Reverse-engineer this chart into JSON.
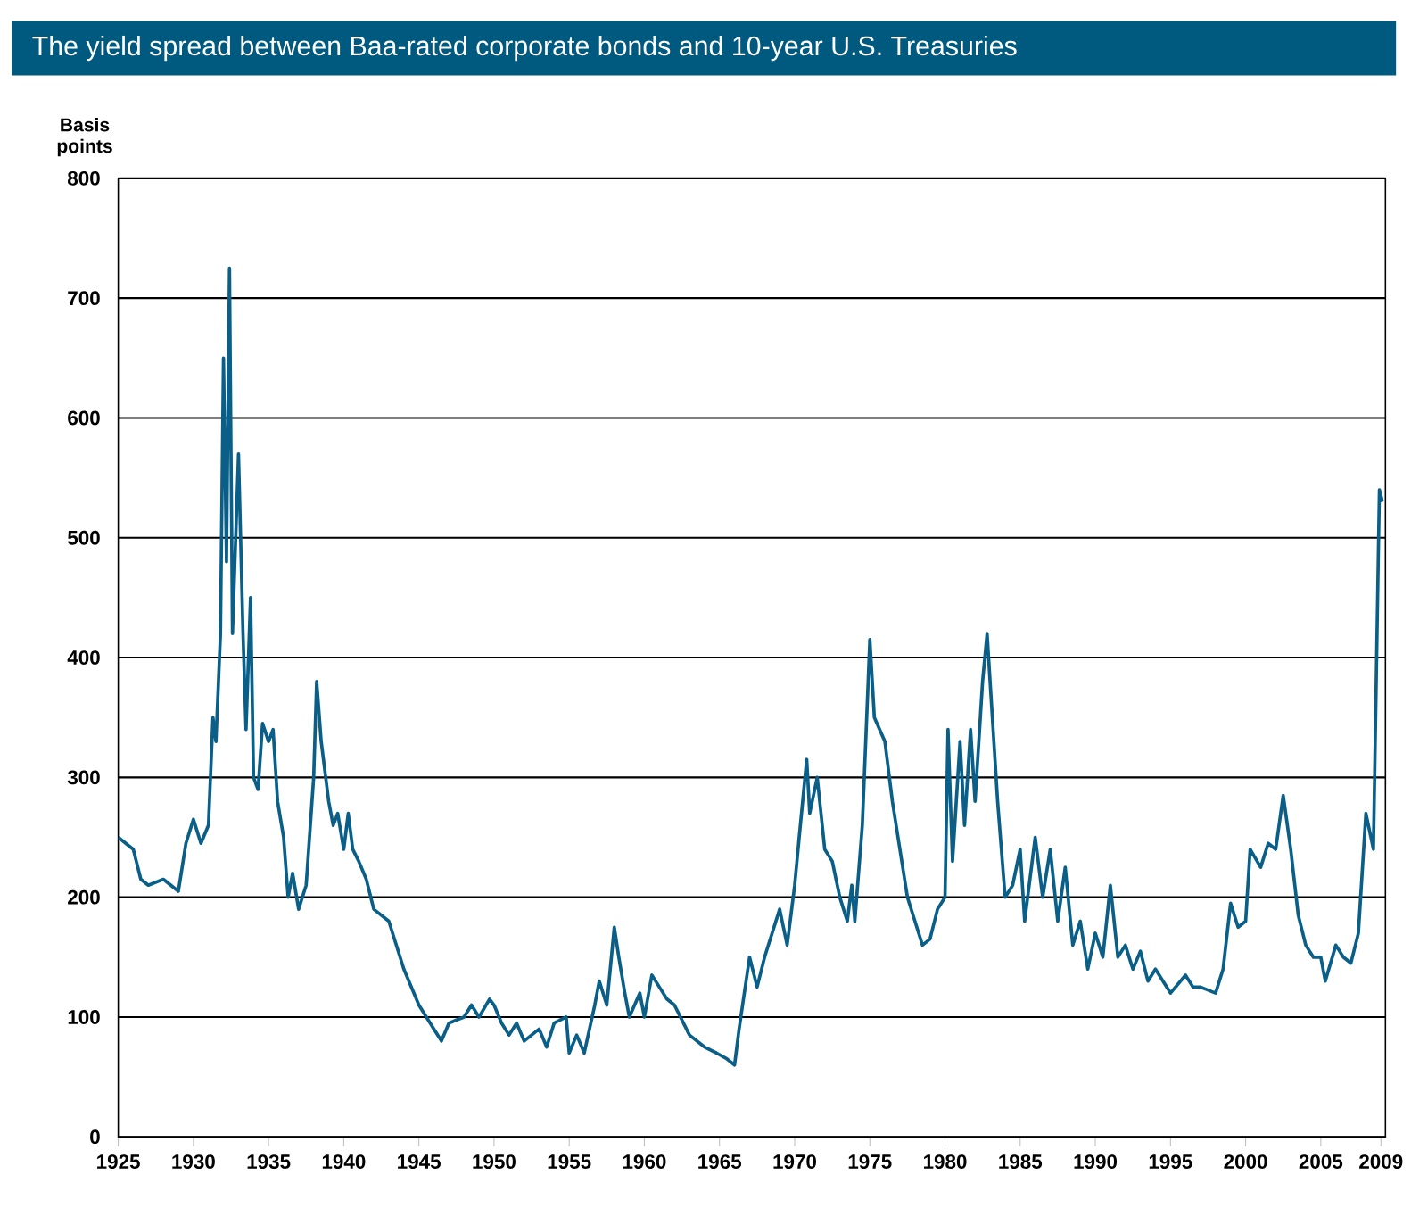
{
  "chart_data": {
    "type": "line",
    "title": "The yield spread between Baa-rated corporate bonds and 10-year U.S. Treasuries",
    "ylabel": "Basis points",
    "x": [
      1925,
      1926,
      1926.5,
      1927,
      1928,
      1929,
      1929.5,
      1930,
      1930.5,
      1931,
      1931.3,
      1931.5,
      1931.8,
      1932,
      1932.2,
      1932.4,
      1932.6,
      1933,
      1933.3,
      1933.5,
      1933.8,
      1934,
      1934.3,
      1934.6,
      1935,
      1935.3,
      1935.6,
      1936,
      1936.3,
      1936.6,
      1937,
      1937.5,
      1938,
      1938.2,
      1938.5,
      1939,
      1939.3,
      1939.6,
      1940,
      1940.3,
      1940.6,
      1941,
      1941.5,
      1942,
      1943,
      1944,
      1945,
      1946,
      1946.5,
      1947,
      1948,
      1948.5,
      1949,
      1949.7,
      1950,
      1950.5,
      1951,
      1951.5,
      1952,
      1953,
      1953.5,
      1954,
      1954.8,
      1955,
      1955.5,
      1956,
      1956.7,
      1957,
      1957.5,
      1958,
      1958.3,
      1958.7,
      1959,
      1959.7,
      1960,
      1960.5,
      1961,
      1961.5,
      1962,
      1963,
      1964,
      1964.8,
      1965.5,
      1966,
      1966.3,
      1967,
      1967.5,
      1968,
      1969,
      1969.5,
      1970,
      1970.3,
      1970.8,
      1971,
      1971.5,
      1972,
      1972.5,
      1973,
      1973.5,
      1973.8,
      1974,
      1974.5,
      1975,
      1975.3,
      1976,
      1976.5,
      1977,
      1977.5,
      1978,
      1978.5,
      1979,
      1979.5,
      1980,
      1980.2,
      1980.5,
      1981,
      1981.3,
      1981.7,
      1982,
      1982.5,
      1982.8,
      1983,
      1983.5,
      1984,
      1984.5,
      1985,
      1985.3,
      1986,
      1986.5,
      1987,
      1987.5,
      1988,
      1988.5,
      1989,
      1989.5,
      1990,
      1990.5,
      1991,
      1991.5,
      1992,
      1992.5,
      1993,
      1993.5,
      1994,
      1995,
      1996,
      1996.5,
      1997,
      1998,
      1998.5,
      1999,
      1999.5,
      2000,
      2000.3,
      2001,
      2001.5,
      2002,
      2002.5,
      2003,
      2003.5,
      2004,
      2004.5,
      2005,
      2005.3,
      2006,
      2006.5,
      2007,
      2007.5,
      2008,
      2008.5,
      2008.9,
      2009.1
    ],
    "series": [
      {
        "color": "#0a5f88",
        "values": [
          250,
          240,
          215,
          210,
          215,
          205,
          245,
          265,
          245,
          260,
          350,
          330,
          420,
          650,
          480,
          725,
          420,
          570,
          420,
          340,
          450,
          300,
          290,
          345,
          330,
          340,
          280,
          250,
          200,
          220,
          190,
          210,
          300,
          380,
          330,
          280,
          260,
          270,
          240,
          270,
          240,
          230,
          215,
          190,
          180,
          140,
          110,
          90,
          80,
          95,
          100,
          110,
          100,
          115,
          110,
          95,
          85,
          95,
          80,
          90,
          75,
          95,
          100,
          70,
          85,
          70,
          110,
          130,
          110,
          175,
          150,
          120,
          100,
          120,
          100,
          135,
          125,
          115,
          110,
          85,
          75,
          70,
          65,
          60,
          90,
          150,
          125,
          150,
          190,
          160,
          210,
          250,
          315,
          270,
          300,
          240,
          230,
          200,
          180,
          210,
          180,
          260,
          415,
          350,
          330,
          280,
          240,
          200,
          180,
          160,
          165,
          190,
          200,
          340,
          230,
          330,
          260,
          340,
          280,
          380,
          420,
          380,
          280,
          200,
          210,
          240,
          180,
          250,
          200,
          240,
          180,
          225,
          160,
          180,
          140,
          170,
          150,
          210,
          150,
          160,
          140,
          155,
          130,
          140,
          120,
          135,
          125,
          125,
          120,
          140,
          195,
          175,
          180,
          240,
          225,
          245,
          240,
          285,
          240,
          185,
          160,
          150,
          150,
          130,
          160,
          150,
          145,
          170,
          270,
          240,
          540,
          530
        ]
      }
    ],
    "xlim": [
      1925,
      2009.3
    ],
    "ylim": [
      0,
      800
    ],
    "xticks": [
      1925,
      1930,
      1935,
      1940,
      1945,
      1950,
      1955,
      1960,
      1965,
      1970,
      1975,
      1980,
      1985,
      1990,
      1995,
      2000,
      2005,
      {
        "value": 2009,
        "label": "2009"
      }
    ],
    "yticks": [
      0,
      100,
      200,
      300,
      400,
      500,
      600,
      700,
      800
    ],
    "grid": "y"
  }
}
